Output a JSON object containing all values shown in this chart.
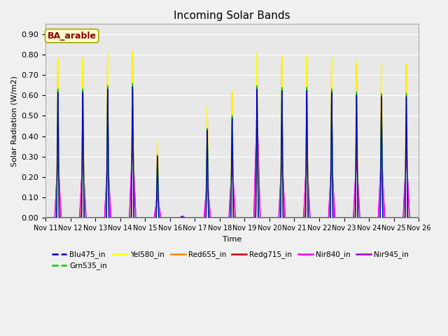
{
  "title": "Incoming Solar Bands",
  "xlabel": "Time",
  "ylabel": "Solar Radiation (W/m2)",
  "annotation": "BA_arable",
  "ylim": [
    0.0,
    0.95
  ],
  "yticks": [
    0.0,
    0.1,
    0.2,
    0.3,
    0.4,
    0.5,
    0.6,
    0.7,
    0.8,
    0.9
  ],
  "x_tick_labels": [
    "Nov 11",
    "Nov 12",
    "Nov 13",
    "Nov 14",
    "Nov 15",
    "Nov 16",
    "Nov 17",
    "Nov 18",
    "Nov 19",
    "Nov 20",
    "Nov 21",
    "Nov 22",
    "Nov 23",
    "Nov 24",
    "Nov 25",
    "Nov 26"
  ],
  "series": [
    {
      "name": "Blu475_in",
      "color": "#0000cc",
      "lw": 1.0,
      "legend_ls": "--"
    },
    {
      "name": "Grn535_in",
      "color": "#00cc00",
      "lw": 1.0,
      "legend_ls": "--"
    },
    {
      "name": "Yel580_in",
      "color": "#ffff00",
      "lw": 1.0,
      "legend_ls": "-"
    },
    {
      "name": "Red655_in",
      "color": "#ff8800",
      "lw": 1.0,
      "legend_ls": "-"
    },
    {
      "name": "Redg715_in",
      "color": "#cc0000",
      "lw": 1.0,
      "legend_ls": "-"
    },
    {
      "name": "Nir840_in",
      "color": "#ff00ff",
      "lw": 1.2,
      "legend_ls": "-"
    },
    {
      "name": "Nir945_in",
      "color": "#9900cc",
      "lw": 1.0,
      "legend_ls": "-"
    }
  ],
  "plot_bg": "#e8e8e8",
  "fig_bg": "#f0f0f0",
  "day_peaks_yel": [
    0.82,
    0.82,
    0.84,
    0.855,
    0.4,
    0.01,
    0.57,
    0.65,
    0.84,
    0.83,
    0.83,
    0.82,
    0.8,
    0.79,
    0.79
  ],
  "day_peaks_nir840": [
    0.3,
    0.3,
    0.29,
    0.38,
    0.12,
    0.01,
    0.19,
    0.27,
    0.53,
    0.3,
    0.31,
    0.29,
    0.3,
    0.32,
    0.32
  ],
  "narrowness_yel": 18,
  "narrowness_nir": 8,
  "pts_per_day": 200
}
